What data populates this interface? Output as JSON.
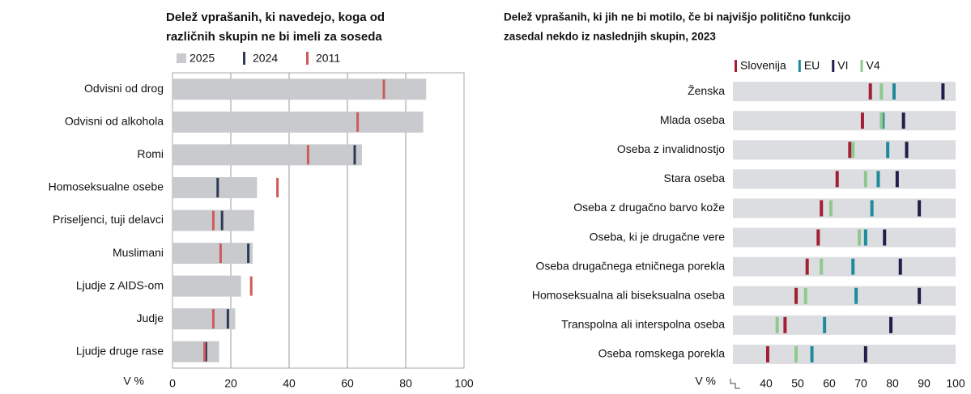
{
  "chart_data": [
    {
      "type": "bar_markers",
      "title": [
        "Delež vprašanih, ki navedejo, koga od",
        "različnih skupin ne bi imeli za soseda"
      ],
      "categories": [
        "Odvisni od drog",
        "Odvisni od alkohola",
        "Romi",
        "Homoseksualne osebe",
        "Priseljenci, tuji delavci",
        "Muslimani",
        "Ljudje z AIDS-om",
        "Judje",
        "Ljudje druge rase"
      ],
      "series": [
        {
          "name": "2025",
          "color": "#c8cacd",
          "values": [
            87,
            86,
            65,
            29,
            28,
            27.5,
            23.5,
            21.5,
            16
          ]
        },
        {
          "name": "2024",
          "color": "#2b3a55",
          "values": [
            null,
            null,
            62.5,
            15.5,
            17,
            26,
            null,
            19,
            11.5
          ]
        },
        {
          "name": "2011",
          "color": "#d05a5a",
          "values": [
            72.5,
            63.5,
            46.5,
            36,
            14,
            16.5,
            27,
            14,
            11
          ]
        }
      ],
      "xlabel": "V %",
      "xlim": [
        0,
        100
      ],
      "xticks": [
        0,
        20,
        40,
        60,
        80,
        100
      ],
      "grid": true
    },
    {
      "type": "dot",
      "title": [
        "Delež vprašanih, ki jih ne bi motilo, če bi najvišjo politično funkcijo",
        "zasedal nekdo iz naslednjih skupin, 2023"
      ],
      "categories": [
        "Ženska",
        "Mlada oseba",
        "Oseba z invalidnostjo",
        "Stara oseba",
        "Oseba z drugačno barvo kože",
        "Oseba, ki je drugačne vere",
        "Oseba drugačnega etničnega porekla",
        "Homoseksualna ali biseksualna oseba",
        "Transpolna ali interspolna oseba",
        "Oseba romskega porekla"
      ],
      "series": [
        {
          "name": "Slovenija",
          "color": "#a31f34",
          "values": [
            73,
            70.5,
            66.5,
            62.5,
            57.5,
            56.5,
            53,
            49.5,
            46,
            40.5
          ]
        },
        {
          "name": "EU",
          "color": "#1f8a9a",
          "values": [
            80.5,
            77,
            78.5,
            75.5,
            73.5,
            71.5,
            67.5,
            68.5,
            58.5,
            54.5
          ]
        },
        {
          "name": "VI",
          "color": "#1e1e4a",
          "values": [
            96,
            83.5,
            84.5,
            81.5,
            88.5,
            77.5,
            82.5,
            88.5,
            79.5,
            71.5
          ]
        },
        {
          "name": "V4",
          "color": "#8fc88f",
          "values": [
            76.5,
            76.5,
            67.5,
            71.5,
            60.5,
            69.5,
            57.5,
            52.5,
            43.5,
            49.5
          ]
        }
      ],
      "xlabel": "V %",
      "xlim": [
        30,
        100
      ],
      "xticks": [
        40,
        50,
        60,
        70,
        80,
        90,
        100
      ]
    }
  ]
}
